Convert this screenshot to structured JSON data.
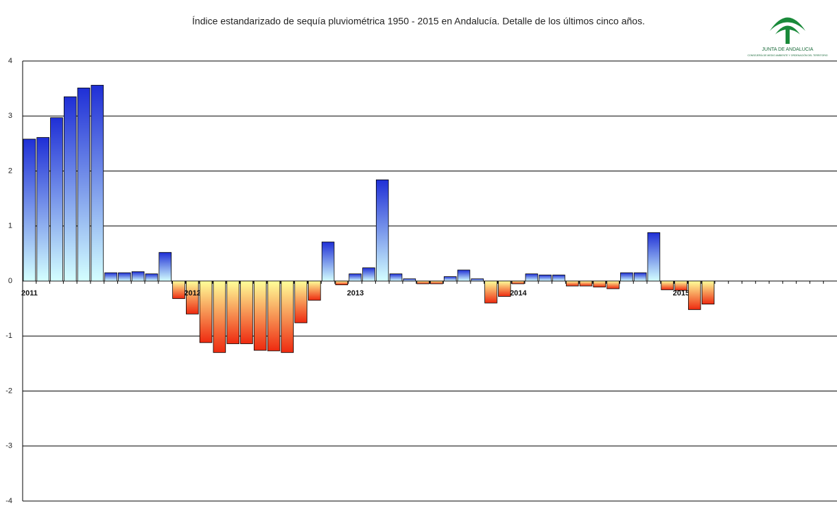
{
  "chart_data": {
    "type": "bar",
    "title": "Índice estandarizado de sequía pluviométrica 1950 - 2015 en Andalucía. Detalle de los últimos cinco años.",
    "logo_text": "JUNTA DE ANDALUCIA",
    "logo_subtext": "CONSEJERÍA DE MEDIO AMBIENTE Y ORDENACIÓN DEL TERRITORIO",
    "categories": [
      "2011",
      null,
      null,
      null,
      null,
      null,
      null,
      null,
      null,
      null,
      null,
      null,
      "2012",
      null,
      null,
      null,
      null,
      null,
      null,
      null,
      null,
      null,
      null,
      null,
      "2013",
      null,
      null,
      null,
      null,
      null,
      null,
      null,
      null,
      null,
      null,
      null,
      "2014",
      null,
      null,
      null,
      null,
      null,
      null,
      null,
      null,
      null,
      null,
      null,
      "2015",
      null,
      null,
      null,
      null,
      null,
      null,
      null,
      null,
      null,
      null,
      null
    ],
    "values": [
      2.58,
      2.61,
      2.97,
      3.35,
      3.51,
      3.56,
      0.15,
      0.15,
      0.17,
      0.13,
      0.52,
      -0.32,
      -0.6,
      -1.12,
      -1.3,
      -1.14,
      -1.14,
      -1.26,
      -1.27,
      -1.3,
      -0.76,
      -0.35,
      0.71,
      -0.07,
      0.13,
      0.24,
      1.84,
      0.13,
      0.04,
      -0.05,
      -0.05,
      0.08,
      0.2,
      0.04,
      -0.4,
      -0.28,
      -0.05,
      0.13,
      0.11,
      0.11,
      -0.09,
      -0.09,
      -0.11,
      -0.14,
      0.15,
      0.15,
      0.88,
      -0.16,
      -0.17,
      -0.52,
      -0.42,
      null,
      null,
      null,
      null,
      null,
      null,
      null,
      null,
      null
    ],
    "positive_gradient": [
      "#1f2fd6",
      "#d4ffff"
    ],
    "negative_gradient": [
      "#ffff99",
      "#ee2a10"
    ],
    "ylim": [
      -4,
      4
    ],
    "yticks": [
      -4,
      -3,
      -2,
      -1,
      0,
      1,
      2,
      3,
      4
    ],
    "grid": true
  }
}
